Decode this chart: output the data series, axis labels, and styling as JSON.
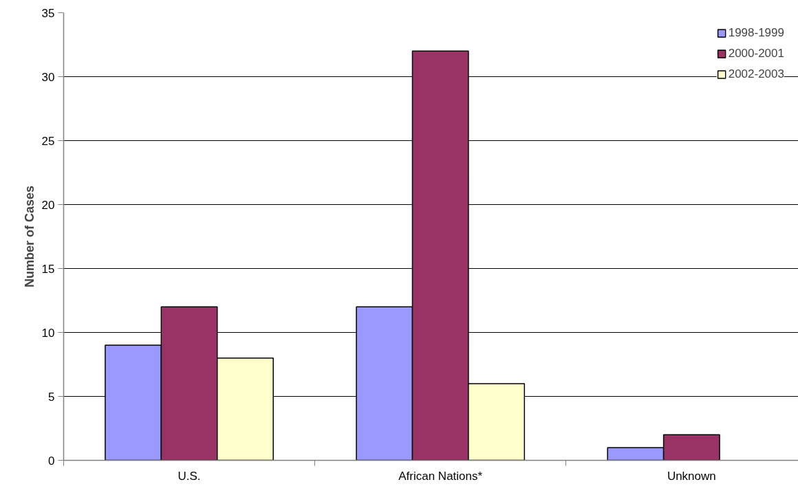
{
  "chart_data": {
    "type": "bar",
    "ylabel": "Number of Cases",
    "categories": [
      "U.S.",
      "African Nations*",
      "Unknown"
    ],
    "series": [
      {
        "name": "1998-1999",
        "color": "#9999ff",
        "values": [
          9,
          12,
          1
        ]
      },
      {
        "name": "2000-2001",
        "color": "#993366",
        "values": [
          12,
          32,
          2
        ]
      },
      {
        "name": "2002-2003",
        "color": "#ffffcc",
        "values": [
          8,
          6,
          null
        ]
      }
    ],
    "ylim": [
      0,
      35
    ],
    "yticks": [
      0,
      5,
      10,
      15,
      20,
      25,
      30,
      35
    ],
    "grid": "y",
    "legend": "top right"
  }
}
